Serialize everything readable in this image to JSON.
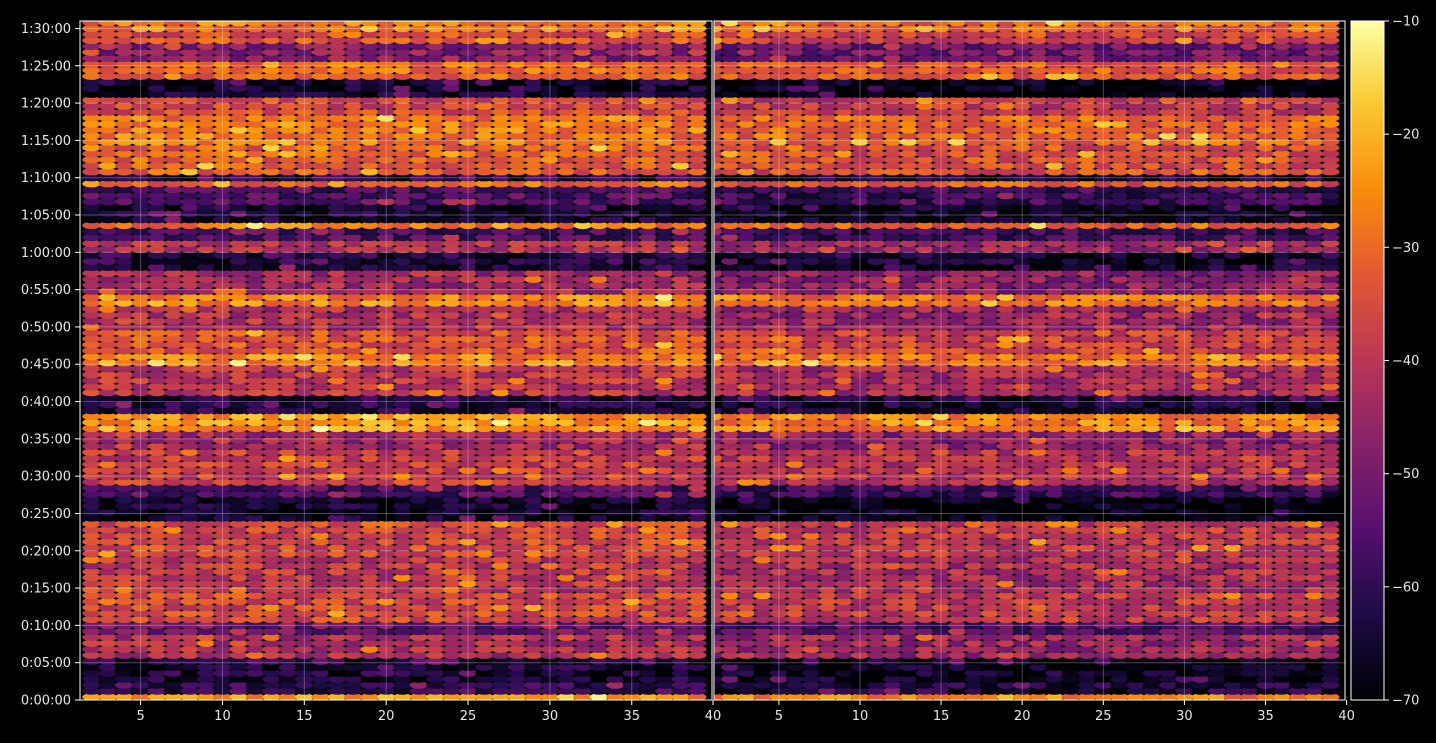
{
  "chart_data": {
    "type": "heatmap",
    "colormap": "inferno",
    "background": "#000000",
    "grid": true,
    "panels": [
      {
        "name": "",
        "x_range": [
          1.3,
          39.9
        ],
        "x_ticks": [
          5,
          10,
          15,
          20,
          25,
          30,
          35
        ],
        "x_tick_labels": [
          "5",
          "10",
          "15",
          "20",
          "25",
          "30",
          "35"
        ],
        "x_edge_tick": 40,
        "x_edge_label": "40"
      },
      {
        "name": "",
        "x_range": [
          1.0,
          39.9
        ],
        "x_ticks": [
          5,
          10,
          15,
          20,
          25,
          30,
          35,
          40
        ],
        "x_tick_labels": [
          "5",
          "10",
          "15",
          "20",
          "25",
          "30",
          "35",
          "40"
        ]
      }
    ],
    "y_range_minutes": [
      0,
      91
    ],
    "y_ticks_minutes": [
      0,
      5,
      10,
      15,
      20,
      25,
      30,
      35,
      40,
      45,
      50,
      55,
      60,
      65,
      70,
      75,
      80,
      85,
      90
    ],
    "y_tick_labels": [
      "0:00:00",
      "0:05:00",
      "0:10:00",
      "0:15:00",
      "0:20:00",
      "0:25:00",
      "0:30:00",
      "0:35:00",
      "0:40:00",
      "0:45:00",
      "0:50:00",
      "0:55:00",
      "1:00:00",
      "1:05:00",
      "1:10:00",
      "1:15:00",
      "1:20:00",
      "1:25:00",
      "1:30:00"
    ],
    "colorbar": {
      "range": [
        -70,
        -10
      ],
      "ticks": [
        -70,
        -60,
        -50,
        -40,
        -30,
        -20,
        -10
      ],
      "tick_labels": [
        "−70",
        "−60",
        "−50",
        "−40",
        "−30",
        "−20",
        "−10"
      ]
    },
    "level_bands": [
      {
        "from": 0.0,
        "to": 0.8,
        "level": -24
      },
      {
        "from": 0.8,
        "to": 2.0,
        "level": -60
      },
      {
        "from": 2.0,
        "to": 5.0,
        "level": -64
      },
      {
        "from": 5.0,
        "to": 8.5,
        "level": -42
      },
      {
        "from": 8.5,
        "to": 10.0,
        "level": -52
      },
      {
        "from": 10.0,
        "to": 14.0,
        "level": -36
      },
      {
        "from": 14.0,
        "to": 19.0,
        "level": -40
      },
      {
        "from": 19.0,
        "to": 23.5,
        "level": -36
      },
      {
        "from": 23.5,
        "to": 26.5,
        "level": -66
      },
      {
        "from": 26.5,
        "to": 28.5,
        "level": -56
      },
      {
        "from": 28.5,
        "to": 33.0,
        "level": -38
      },
      {
        "from": 33.0,
        "to": 36.0,
        "level": -44
      },
      {
        "from": 36.0,
        "to": 38.0,
        "level": -24
      },
      {
        "from": 38.0,
        "to": 40.5,
        "level": -62
      },
      {
        "from": 40.5,
        "to": 44.0,
        "level": -40
      },
      {
        "from": 44.0,
        "to": 46.0,
        "level": -26
      },
      {
        "from": 46.0,
        "to": 49.5,
        "level": -34
      },
      {
        "from": 49.5,
        "to": 52.0,
        "level": -42
      },
      {
        "from": 52.0,
        "to": 54.0,
        "level": -26
      },
      {
        "from": 54.0,
        "to": 57.5,
        "level": -44
      },
      {
        "from": 57.5,
        "to": 59.5,
        "level": -62
      },
      {
        "from": 59.5,
        "to": 61.5,
        "level": -42
      },
      {
        "from": 61.5,
        "to": 62.5,
        "level": -56
      },
      {
        "from": 62.5,
        "to": 63.5,
        "level": -28
      },
      {
        "from": 63.5,
        "to": 66.0,
        "level": -64
      },
      {
        "from": 66.0,
        "to": 68.5,
        "level": -56
      },
      {
        "from": 68.5,
        "to": 69.5,
        "level": -30
      },
      {
        "from": 69.5,
        "to": 70.3,
        "level": -62
      },
      {
        "from": 70.3,
        "to": 74.0,
        "level": -32
      },
      {
        "from": 74.0,
        "to": 78.0,
        "level": -28
      },
      {
        "from": 78.0,
        "to": 80.5,
        "level": -36
      },
      {
        "from": 80.5,
        "to": 82.5,
        "level": -66
      },
      {
        "from": 82.5,
        "to": 85.5,
        "level": -30
      },
      {
        "from": 85.5,
        "to": 87.5,
        "level": -48
      },
      {
        "from": 87.5,
        "to": 89.0,
        "level": -34
      },
      {
        "from": 89.0,
        "to": 90.5,
        "level": -28
      }
    ]
  }
}
